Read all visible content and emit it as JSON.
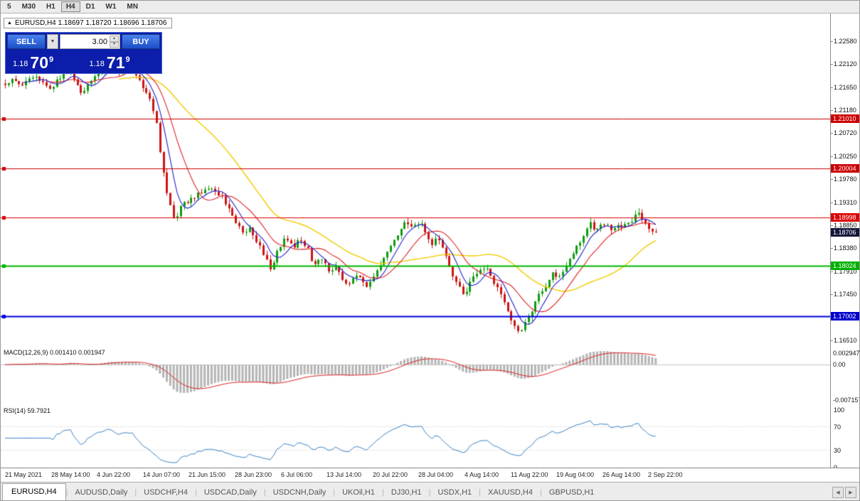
{
  "colors": {
    "candle_up": "#0f9b0f",
    "candle_down": "#cc1414",
    "ma_yellow": "#f2cc00",
    "ma_red": "#e02020",
    "ma_blue": "#2222cc",
    "macd_hist": "#b4b4b4",
    "macd_signal": "#dd2222",
    "rsi_line": "#3b82c4"
  },
  "toolbar": {
    "items": [
      "5",
      "M30",
      "H1",
      "H4",
      "D1",
      "W1",
      "MN"
    ],
    "active": "H4"
  },
  "header": {
    "collapse_icon": "▲",
    "title": "EURUSD,H4 1.18697 1.18720 1.18696 1.18706"
  },
  "trade_panel": {
    "sell_label": "SELL",
    "buy_label": "BUY",
    "volume": "3.00",
    "dropdown_icon": "▼",
    "spin_up": "▲",
    "spin_down": "▼",
    "bid_prefix": "1.18",
    "bid_big": "70",
    "bid_sup": "9",
    "ask_prefix": "1.18",
    "ask_big": "71",
    "ask_sup": "9"
  },
  "price_axis": [
    "1.22580",
    "1.22120",
    "1.21650",
    "1.21180",
    "1.20720",
    "1.20250",
    "1.19780",
    "1.19310",
    "1.18850",
    "1.18380",
    "1.17910",
    "1.17450",
    "1.16980",
    "1.16510"
  ],
  "hlines": [
    {
      "price": "1.21010",
      "value": 1.2101,
      "stroke": "#cc0000",
      "chip": "#cc0000",
      "width": 1
    },
    {
      "price": "1.20004",
      "value": 1.20004,
      "stroke": "#cc0000",
      "chip": "#cc0000",
      "width": 1
    },
    {
      "price": "1.18998",
      "value": 1.18998,
      "stroke": "#dd0000",
      "chip": "#dd0000",
      "width": 1
    },
    {
      "price": "1.18024",
      "value": 1.18024,
      "stroke": "#00b800",
      "chip": "#00b000",
      "width": 2
    },
    {
      "price": "1.17002",
      "value": 1.17002,
      "stroke": "#0000dd",
      "chip": "#0000cc",
      "width": 2
    }
  ],
  "current_price": {
    "text": "1.18706",
    "value": 1.18706,
    "chip": "#14143a"
  },
  "macd": {
    "label": "MACD(12,26,9) 0.001410 0.001947",
    "axis_top": "0.002947",
    "axis_zero": "0.00",
    "axis_bottom": "-0.007157"
  },
  "rsi": {
    "label": "RSI(14) 59.7921",
    "axis": [
      100,
      70,
      30,
      0
    ]
  },
  "time_axis": [
    "21 May 2021",
    "28 May 14:00",
    "4 Jun 22:00",
    "14 Jun 07:00",
    "21 Jun 15:00",
    "28 Jun 23:00",
    "6 Jul 06:00",
    "13 Jul 14:00",
    "20 Jul 22:00",
    "28 Jul 04:00",
    "4 Aug 14:00",
    "11 Aug 22:00",
    "19 Aug 04:00",
    "26 Aug 14:00",
    "2 Sep 22:00"
  ],
  "tabs": {
    "items": [
      "EURUSD,H4",
      "AUDUSD,Daily",
      "USDCHF,H4",
      "USDCAD,Daily",
      "USDCNH,Daily",
      "UKOil,H1",
      "DJ30,H1",
      "USDX,H1",
      "XAUUSD,H4",
      "GBPUSD,H1"
    ],
    "active": "EURUSD,H4",
    "scroll_left": "◀",
    "scroll_right": "▶"
  },
  "chart_data": {
    "type": "candlestick",
    "symbol": "EURUSD",
    "timeframe": "H4",
    "ohlc_current": {
      "open": 1.18697,
      "high": 1.1872,
      "low": 1.18696,
      "close": 1.18706
    },
    "visible_range": {
      "price_top": 1.2258,
      "price_bottom": 1.1651
    },
    "overlays": [
      "SMA fast blue",
      "SMA medium red",
      "SMA slow yellow"
    ],
    "price_path": [
      [
        0.0,
        1.2172
      ],
      [
        0.012,
        1.2186
      ],
      [
        0.025,
        1.2163
      ],
      [
        0.04,
        1.2192
      ],
      [
        0.055,
        1.2174
      ],
      [
        0.07,
        1.2162
      ],
      [
        0.085,
        1.2188
      ],
      [
        0.1,
        1.2201
      ],
      [
        0.115,
        1.2152
      ],
      [
        0.13,
        1.2175
      ],
      [
        0.145,
        1.2198
      ],
      [
        0.16,
        1.2212
      ],
      [
        0.175,
        1.2192
      ],
      [
        0.19,
        1.2206
      ],
      [
        0.205,
        1.218
      ],
      [
        0.22,
        1.2152
      ],
      [
        0.232,
        1.2098
      ],
      [
        0.242,
        1.1998
      ],
      [
        0.252,
        1.1928
      ],
      [
        0.26,
        1.1896
      ],
      [
        0.27,
        1.1922
      ],
      [
        0.285,
        1.194
      ],
      [
        0.3,
        1.1952
      ],
      [
        0.315,
        1.1966
      ],
      [
        0.33,
        1.1946
      ],
      [
        0.345,
        1.1918
      ],
      [
        0.357,
        1.1886
      ],
      [
        0.367,
        1.1862
      ],
      [
        0.377,
        1.188
      ],
      [
        0.387,
        1.1852
      ],
      [
        0.397,
        1.1826
      ],
      [
        0.407,
        1.1798
      ],
      [
        0.417,
        1.1826
      ],
      [
        0.43,
        1.1856
      ],
      [
        0.443,
        1.184
      ],
      [
        0.455,
        1.1856
      ],
      [
        0.465,
        1.1836
      ],
      [
        0.475,
        1.1802
      ],
      [
        0.487,
        1.1816
      ],
      [
        0.497,
        1.1792
      ],
      [
        0.507,
        1.1802
      ],
      [
        0.517,
        1.1776
      ],
      [
        0.527,
        1.1762
      ],
      [
        0.537,
        1.179
      ],
      [
        0.547,
        1.1774
      ],
      [
        0.557,
        1.176
      ],
      [
        0.567,
        1.1786
      ],
      [
        0.577,
        1.1806
      ],
      [
        0.587,
        1.1826
      ],
      [
        0.597,
        1.185
      ],
      [
        0.607,
        1.1872
      ],
      [
        0.617,
        1.1892
      ],
      [
        0.627,
        1.1876
      ],
      [
        0.637,
        1.1892
      ],
      [
        0.647,
        1.1866
      ],
      [
        0.657,
        1.1846
      ],
      [
        0.664,
        1.1866
      ],
      [
        0.674,
        1.1836
      ],
      [
        0.684,
        1.1796
      ],
      [
        0.694,
        1.1766
      ],
      [
        0.704,
        1.1744
      ],
      [
        0.714,
        1.1766
      ],
      [
        0.724,
        1.1786
      ],
      [
        0.734,
        1.1802
      ],
      [
        0.744,
        1.1786
      ],
      [
        0.754,
        1.1764
      ],
      [
        0.764,
        1.1734
      ],
      [
        0.774,
        1.1704
      ],
      [
        0.784,
        1.1676
      ],
      [
        0.792,
        1.1662
      ],
      [
        0.802,
        1.1692
      ],
      [
        0.812,
        1.1722
      ],
      [
        0.822,
        1.1746
      ],
      [
        0.832,
        1.1766
      ],
      [
        0.84,
        1.1786
      ],
      [
        0.848,
        1.1776
      ],
      [
        0.858,
        1.1796
      ],
      [
        0.868,
        1.1816
      ],
      [
        0.878,
        1.184
      ],
      [
        0.888,
        1.1864
      ],
      [
        0.898,
        1.1888
      ],
      [
        0.908,
        1.1874
      ],
      [
        0.918,
        1.1888
      ],
      [
        0.93,
        1.1876
      ],
      [
        0.945,
        1.1882
      ],
      [
        0.96,
        1.1894
      ],
      [
        0.973,
        1.1906
      ],
      [
        0.985,
        1.1882
      ],
      [
        1.0,
        1.18706
      ]
    ]
  }
}
